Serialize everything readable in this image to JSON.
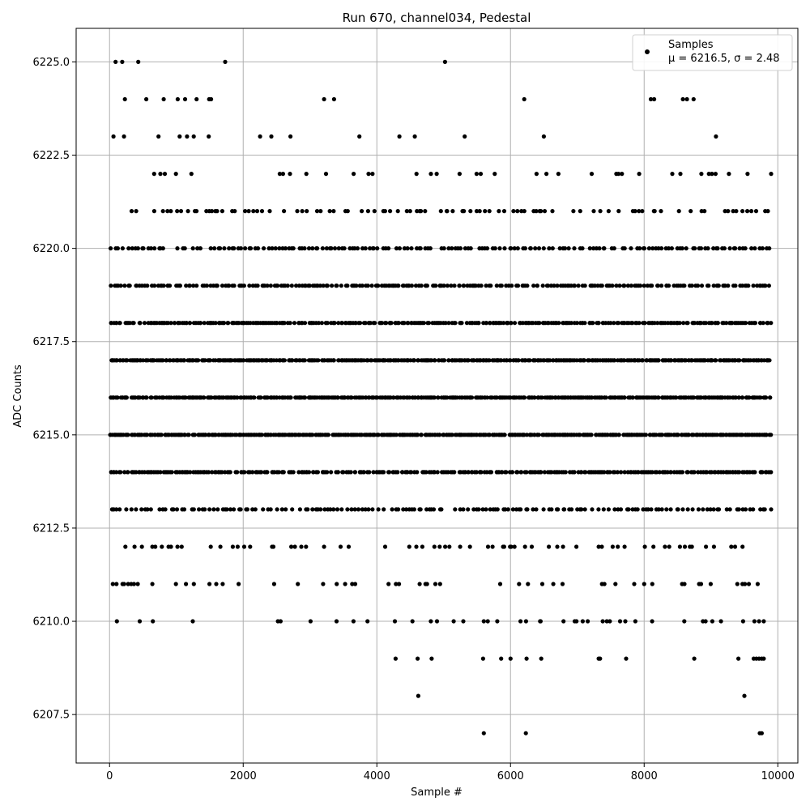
{
  "chart_data": {
    "type": "scatter",
    "title": "Run 670, channel034, Pedestal",
    "xlabel": "Sample #",
    "ylabel": "ADC Counts",
    "xlim": [
      -500,
      10300
    ],
    "ylim": [
      6206.2,
      6225.9
    ],
    "xticks": [
      0,
      2000,
      4000,
      6000,
      8000,
      10000
    ],
    "xtick_labels": [
      "0",
      "2000",
      "4000",
      "6000",
      "8000",
      "10000"
    ],
    "yticks": [
      6207.5,
      6210.0,
      6212.5,
      6215.0,
      6217.5,
      6220.0,
      6222.5,
      6225.0
    ],
    "ytick_labels": [
      "6207.5",
      "6210.0",
      "6212.5",
      "6215.0",
      "6217.5",
      "6220.0",
      "6222.5",
      "6225.0"
    ],
    "grid": true,
    "legend_position": "top-right",
    "legend": {
      "series_label": "Samples",
      "stats_label": "μ = 6216.5, σ = 2.48"
    },
    "mean": 6216.5,
    "sigma": 2.48,
    "series": [
      {
        "name": "Samples",
        "color": "#000000",
        "marker": "circle",
        "level_density": [
          {
            "level": 6225,
            "density": 0.0006,
            "extra_x": [
              90,
              190,
              430,
              1730,
              5020
            ]
          },
          {
            "level": 6224,
            "density": 0.002,
            "extra_x": [
              230,
              550,
              810,
              1020,
              1130,
              1490,
              1520,
              3210,
              8100,
              8150,
              8580,
              8640,
              8740
            ]
          },
          {
            "level": 6223,
            "density": 0.009
          },
          {
            "level": 6222,
            "density": 0.03
          },
          {
            "level": 6221,
            "density": 0.06
          },
          {
            "level": 6220,
            "density": 0.11
          },
          {
            "level": 6219,
            "density": 0.15
          },
          {
            "level": 6218,
            "density": 0.2
          },
          {
            "level": 6217,
            "density": 0.3
          },
          {
            "level": 6216,
            "density": 0.3
          },
          {
            "level": 6215,
            "density": 0.3
          },
          {
            "level": 6214,
            "density": 0.2
          },
          {
            "level": 6213,
            "density": 0.1
          },
          {
            "level": 6212,
            "density": 0.04
          },
          {
            "level": 6211,
            "density": 0.03
          },
          {
            "level": 6210,
            "density": 0.012,
            "extra_x": [
              2520,
              2560,
              3650,
              3860,
              4270,
              4900,
              5150,
              5600,
              5660,
              6150,
              6450,
              6960,
              7080,
              7380,
              7640,
              8600,
              8920,
              9020,
              9150,
              9480,
              9650,
              9720,
              9790
            ]
          },
          {
            "level": 6209,
            "density": 0.0,
            "extra_x": [
              4280,
              4610,
              4820,
              5590,
              5860,
              6000,
              6240,
              6460,
              7320,
              7340,
              7730,
              8750,
              9410,
              9640,
              9680,
              9720,
              9760,
              9790
            ]
          },
          {
            "level": 6208,
            "density": 0.0,
            "extra_x": [
              4620,
              9500
            ]
          },
          {
            "level": 6207,
            "density": 0.0,
            "extra_x": [
              5600,
              6230,
              9730,
              9760
            ]
          }
        ],
        "x_range": [
          0,
          9850
        ],
        "n_samples": 9850
      }
    ]
  }
}
